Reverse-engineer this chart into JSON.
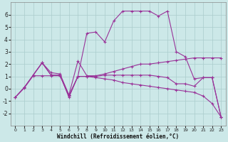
{
  "xlabel": "Windchill (Refroidissement éolien,°C)",
  "bg_color": "#cce8e8",
  "line_color": "#993399",
  "grid_color": "#aacccc",
  "ylim": [
    -3,
    7
  ],
  "xlim": [
    -0.5,
    23.5
  ],
  "yticks": [
    -2,
    -1,
    0,
    1,
    2,
    3,
    4,
    5,
    6
  ],
  "xticks": [
    0,
    1,
    2,
    3,
    4,
    5,
    6,
    7,
    8,
    9,
    10,
    11,
    12,
    13,
    14,
    15,
    16,
    17,
    18,
    19,
    20,
    21,
    22,
    23
  ],
  "series": {
    "line1_x": [
      0,
      1,
      2,
      3,
      4,
      5,
      6,
      7,
      8,
      9,
      10,
      11,
      12,
      13,
      14,
      15,
      16,
      17,
      18,
      19,
      20,
      21,
      22,
      23
    ],
    "line1_y": [
      -0.7,
      0.1,
      1.1,
      2.1,
      1.1,
      1.1,
      -0.7,
      1.0,
      4.5,
      4.6,
      3.8,
      5.5,
      6.3,
      6.3,
      6.3,
      6.3,
      5.9,
      6.3,
      3.0,
      2.6,
      0.8,
      0.9,
      0.9,
      -2.3
    ],
    "line2_x": [
      0,
      1,
      2,
      3,
      4,
      5,
      6,
      7,
      8,
      9,
      10,
      11,
      12,
      13,
      14,
      15,
      16,
      17,
      18,
      19,
      20,
      21,
      22,
      23
    ],
    "line2_y": [
      -0.7,
      0.1,
      1.1,
      2.1,
      1.3,
      1.2,
      -0.5,
      2.25,
      1.05,
      1.05,
      1.2,
      1.4,
      1.6,
      1.8,
      2.0,
      2.0,
      2.1,
      2.2,
      2.3,
      2.4,
      2.5,
      2.5,
      2.5,
      2.5
    ],
    "line3_x": [
      2,
      3,
      4,
      5,
      6,
      7,
      8,
      9,
      10,
      11,
      12,
      13,
      14,
      15,
      16,
      17,
      18,
      19,
      20,
      21,
      22,
      23
    ],
    "line3_y": [
      1.1,
      2.1,
      1.1,
      1.1,
      -0.6,
      1.0,
      1.0,
      1.0,
      1.1,
      1.1,
      1.1,
      1.1,
      1.1,
      1.1,
      1.0,
      0.9,
      0.4,
      0.4,
      0.2,
      0.9,
      0.9,
      -2.3
    ],
    "line4_x": [
      0,
      1,
      2,
      3,
      4,
      5,
      6,
      7,
      8,
      9,
      10,
      11,
      12,
      13,
      14,
      15,
      16,
      17,
      18,
      19,
      20,
      21,
      22,
      23
    ],
    "line4_y": [
      -0.7,
      0.05,
      1.05,
      1.05,
      1.05,
      1.05,
      -0.55,
      1.0,
      1.0,
      0.9,
      0.8,
      0.7,
      0.5,
      0.4,
      0.3,
      0.2,
      0.1,
      0.0,
      -0.1,
      -0.2,
      -0.3,
      -0.6,
      -1.2,
      -2.3
    ]
  }
}
